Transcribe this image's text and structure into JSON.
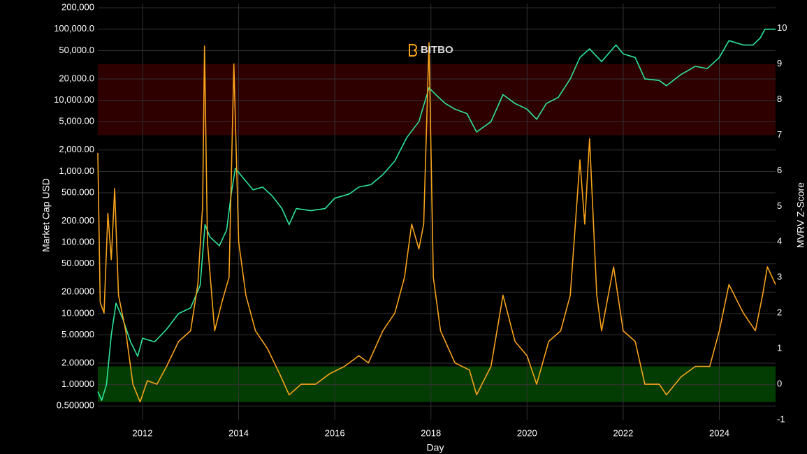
{
  "chart_data": {
    "type": "line",
    "watermark": "BITBO",
    "xlabel": "Day",
    "ylabel": "Market Cap USD",
    "y2label": "MVRV Z-Score",
    "xlim": [
      2011.07,
      2025.17
    ],
    "xticks": [
      2012,
      2014,
      2016,
      2018,
      2020,
      2022,
      2024
    ],
    "ylim": [
      0.32,
      230000
    ],
    "log_y": true,
    "yticks": [
      {
        "value": 0.5,
        "label": "0.500000"
      },
      {
        "value": 1,
        "label": "1.00000"
      },
      {
        "value": 2,
        "label": "2.00000"
      },
      {
        "value": 5,
        "label": "5.00000"
      },
      {
        "value": 10,
        "label": "10.0000"
      },
      {
        "value": 20,
        "label": "20.0000"
      },
      {
        "value": 50,
        "label": "50.0000"
      },
      {
        "value": 100,
        "label": "100.000"
      },
      {
        "value": 200,
        "label": "200.000"
      },
      {
        "value": 500,
        "label": "500.000"
      },
      {
        "value": 1000,
        "label": "1,000.00"
      },
      {
        "value": 2000,
        "label": "2,000.00"
      },
      {
        "value": 5000,
        "label": "5,000.00"
      },
      {
        "value": 10000,
        "label": "10,000.00"
      },
      {
        "value": 20000,
        "label": "20,000.0"
      },
      {
        "value": 50000,
        "label": "50,000.0"
      },
      {
        "value": 100000,
        "label": "100,000.0"
      },
      {
        "value": 200000,
        "label": "200,000"
      }
    ],
    "y2lim": [
      -1,
      10.7
    ],
    "y2ticks": [
      -1,
      0,
      1,
      2,
      3,
      4,
      5,
      6,
      7,
      8,
      9,
      10
    ],
    "grid": true,
    "bands": [
      {
        "axis": "y2",
        "from": 7,
        "to": 9,
        "color": "#2e0000"
      },
      {
        "axis": "y2",
        "from": -0.5,
        "to": 0.5,
        "color": "#043d04"
      }
    ],
    "series": [
      {
        "name": "Market Cap",
        "color": "#2ee59d",
        "axis": "y",
        "x": [
          2011.07,
          2011.15,
          2011.25,
          2011.35,
          2011.45,
          2011.6,
          2011.75,
          2011.9,
          2012.0,
          2012.25,
          2012.5,
          2012.75,
          2013.0,
          2013.2,
          2013.3,
          2013.4,
          2013.6,
          2013.75,
          2013.85,
          2013.93,
          2014.1,
          2014.3,
          2014.5,
          2014.7,
          2014.9,
          2015.05,
          2015.2,
          2015.5,
          2015.8,
          2016.0,
          2016.3,
          2016.5,
          2016.75,
          2017.0,
          2017.25,
          2017.5,
          2017.75,
          2017.96,
          2018.1,
          2018.3,
          2018.5,
          2018.75,
          2018.95,
          2019.25,
          2019.5,
          2019.75,
          2020.0,
          2020.2,
          2020.4,
          2020.65,
          2020.9,
          2021.1,
          2021.3,
          2021.55,
          2021.75,
          2021.85,
          2022.0,
          2022.25,
          2022.45,
          2022.75,
          2022.9,
          2023.2,
          2023.5,
          2023.75,
          2024.0,
          2024.2,
          2024.5,
          2024.7,
          2024.85,
          2024.95,
          2025.17
        ],
        "values": [
          0.8,
          0.6,
          1.0,
          5,
          14,
          8,
          4,
          2.5,
          4.5,
          4,
          6,
          10,
          12,
          25,
          178,
          120,
          90,
          150,
          500,
          1100,
          800,
          550,
          600,
          450,
          300,
          178,
          300,
          280,
          300,
          420,
          480,
          600,
          650,
          900,
          1400,
          3000,
          5000,
          15000,
          12000,
          9000,
          7500,
          6500,
          3580,
          5000,
          12000,
          9000,
          7500,
          5400,
          9000,
          11000,
          20000,
          40000,
          53000,
          35000,
          50000,
          60000,
          45000,
          40000,
          20000,
          19000,
          16000,
          23000,
          30000,
          28000,
          40000,
          69000,
          60000,
          60000,
          75000,
          100000,
          100000
        ]
      },
      {
        "name": "MVRV Z-Score",
        "color": "#f7a21b",
        "axis": "y2",
        "x": [
          2011.07,
          2011.12,
          2011.2,
          2011.28,
          2011.35,
          2011.42,
          2011.5,
          2011.65,
          2011.8,
          2011.95,
          2012.1,
          2012.3,
          2012.5,
          2012.75,
          2013.0,
          2013.15,
          2013.25,
          2013.29,
          2013.35,
          2013.5,
          2013.65,
          2013.8,
          2013.9,
          2014.0,
          2014.15,
          2014.35,
          2014.6,
          2014.85,
          2015.05,
          2015.3,
          2015.6,
          2015.9,
          2016.2,
          2016.5,
          2016.7,
          2017.0,
          2017.25,
          2017.45,
          2017.6,
          2017.75,
          2017.85,
          2017.96,
          2018.05,
          2018.2,
          2018.5,
          2018.8,
          2018.95,
          2019.25,
          2019.5,
          2019.75,
          2020.0,
          2020.2,
          2020.45,
          2020.7,
          2020.9,
          2021.1,
          2021.2,
          2021.3,
          2021.45,
          2021.55,
          2021.8,
          2022.0,
          2022.25,
          2022.45,
          2022.75,
          2022.9,
          2023.2,
          2023.5,
          2023.8,
          2024.0,
          2024.2,
          2024.5,
          2024.75,
          2024.9,
          2025.0,
          2025.17
        ],
        "values": [
          6.5,
          2.3,
          2.0,
          4.8,
          3.5,
          5.5,
          2.5,
          1.5,
          0.0,
          -0.5,
          0.1,
          0.0,
          0.5,
          1.2,
          1.5,
          2.8,
          5,
          9.5,
          4,
          1.5,
          2.3,
          3.0,
          9.0,
          4.0,
          2.5,
          1.5,
          1.0,
          0.3,
          -0.3,
          0.0,
          0.0,
          0.3,
          0.5,
          0.8,
          0.6,
          1.5,
          2.0,
          3.0,
          4.5,
          3.8,
          4.5,
          9.6,
          3.0,
          1.5,
          0.6,
          0.4,
          -0.3,
          0.5,
          2.5,
          1.2,
          0.8,
          0.0,
          1.2,
          1.5,
          2.5,
          6.3,
          4.5,
          6.9,
          2.5,
          1.5,
          3.3,
          1.5,
          1.2,
          0.0,
          0.0,
          -0.3,
          0.2,
          0.5,
          0.5,
          1.5,
          2.8,
          2.0,
          1.5,
          2.5,
          3.3,
          2.8
        ]
      }
    ]
  }
}
